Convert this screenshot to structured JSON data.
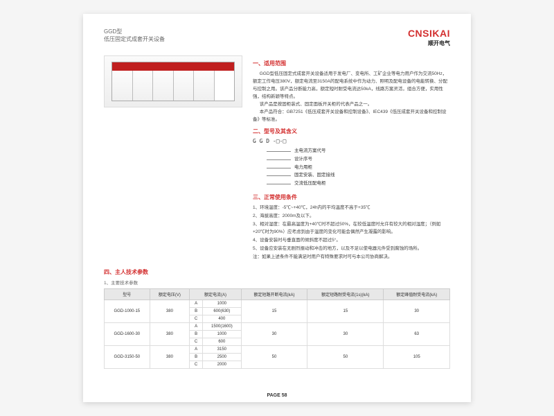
{
  "header": {
    "model": "GGD型",
    "subtitle": "低压固定式成套开关设备",
    "logo_en": "CNSIKAI",
    "logo_cn": "顺开电气"
  },
  "sec1": {
    "title": "一、适用范围",
    "p1": "GGD型低压固定式成套开关设备适用于发电厂、变电所、工矿企业等电力用户作为交流50Hz，额定工作电压380V，额定电流至3150A的配电系统中作为动力、照明及配电设备的电能转换、分配与控制之用。该产品分断能力高，额定短时耐受电流达50kA，线路方案灵活，组合方便，实用性强，结构新颖等特点。",
    "p2": "该产品是按固柜装式、固定面板开关柜的代表产品之一。",
    "p3": "本产品符合：GB7251《低压成套开关设备和控制设备》、IEC439《低压成套开关设备和控制设备》等标准。"
  },
  "sec2": {
    "title": "二、型号及其含义",
    "code": "G G D -□-□",
    "lines": [
      "主电流方案代号",
      "设计序号",
      "电力用柜",
      "固定安装、固定接线",
      "交流低压配电柜"
    ]
  },
  "sec3": {
    "title": "三、正常使用条件",
    "items": [
      "1、环境温度：-5℃~+40℃，24h内的平均温度不高于+35℃",
      "2、海拔高度：2000m及以下。",
      "3、相对湿度：在最高温度为+40℃时不超过50%，在较低温度时允许有较大的相对湿度；（例如+20℃时为90%）应考虑到由于温度的变化可能会偶然产生凝露的影响。",
      "4、设备安装时与垂直面的倾斜度不超过5°。",
      "5、设备应安装在无剧烈振动和冲击的地方，以及不足以使电器元件受到腐蚀的场所。",
      "注：如果上述条件不能满足时用户有特殊要求时可与本公司协商解决。"
    ]
  },
  "sec4": {
    "title": "四、主人技术参数",
    "subtitle": "1、主要技术参数"
  },
  "table": {
    "headers": [
      "型号",
      "额定电压(V)",
      "额定电流(A)",
      "额定短路开断电流(kA)",
      "额定短路耐受电流(1s)(kA)",
      "额定峰值耐受电流(kA)"
    ],
    "rows": [
      {
        "model": "GGD-1000-15",
        "v": "380",
        "c": [
          [
            "A",
            "1000"
          ],
          [
            "B",
            "600(630)"
          ],
          [
            "C",
            "400"
          ]
        ],
        "k1": "15",
        "k2": "15",
        "k3": "30"
      },
      {
        "model": "GGD-1600-30",
        "v": "380",
        "c": [
          [
            "A",
            "1500(1600)"
          ],
          [
            "B",
            "1000"
          ],
          [
            "C",
            "600"
          ]
        ],
        "k1": "30",
        "k2": "30",
        "k3": "63"
      },
      {
        "model": "GGD-3150-50",
        "v": "380",
        "c": [
          [
            "A",
            "3150"
          ],
          [
            "B",
            "2500"
          ],
          [
            "C",
            "2000"
          ]
        ],
        "k1": "50",
        "k2": "50",
        "k3": "105"
      }
    ]
  },
  "footer": "PAGE 58"
}
